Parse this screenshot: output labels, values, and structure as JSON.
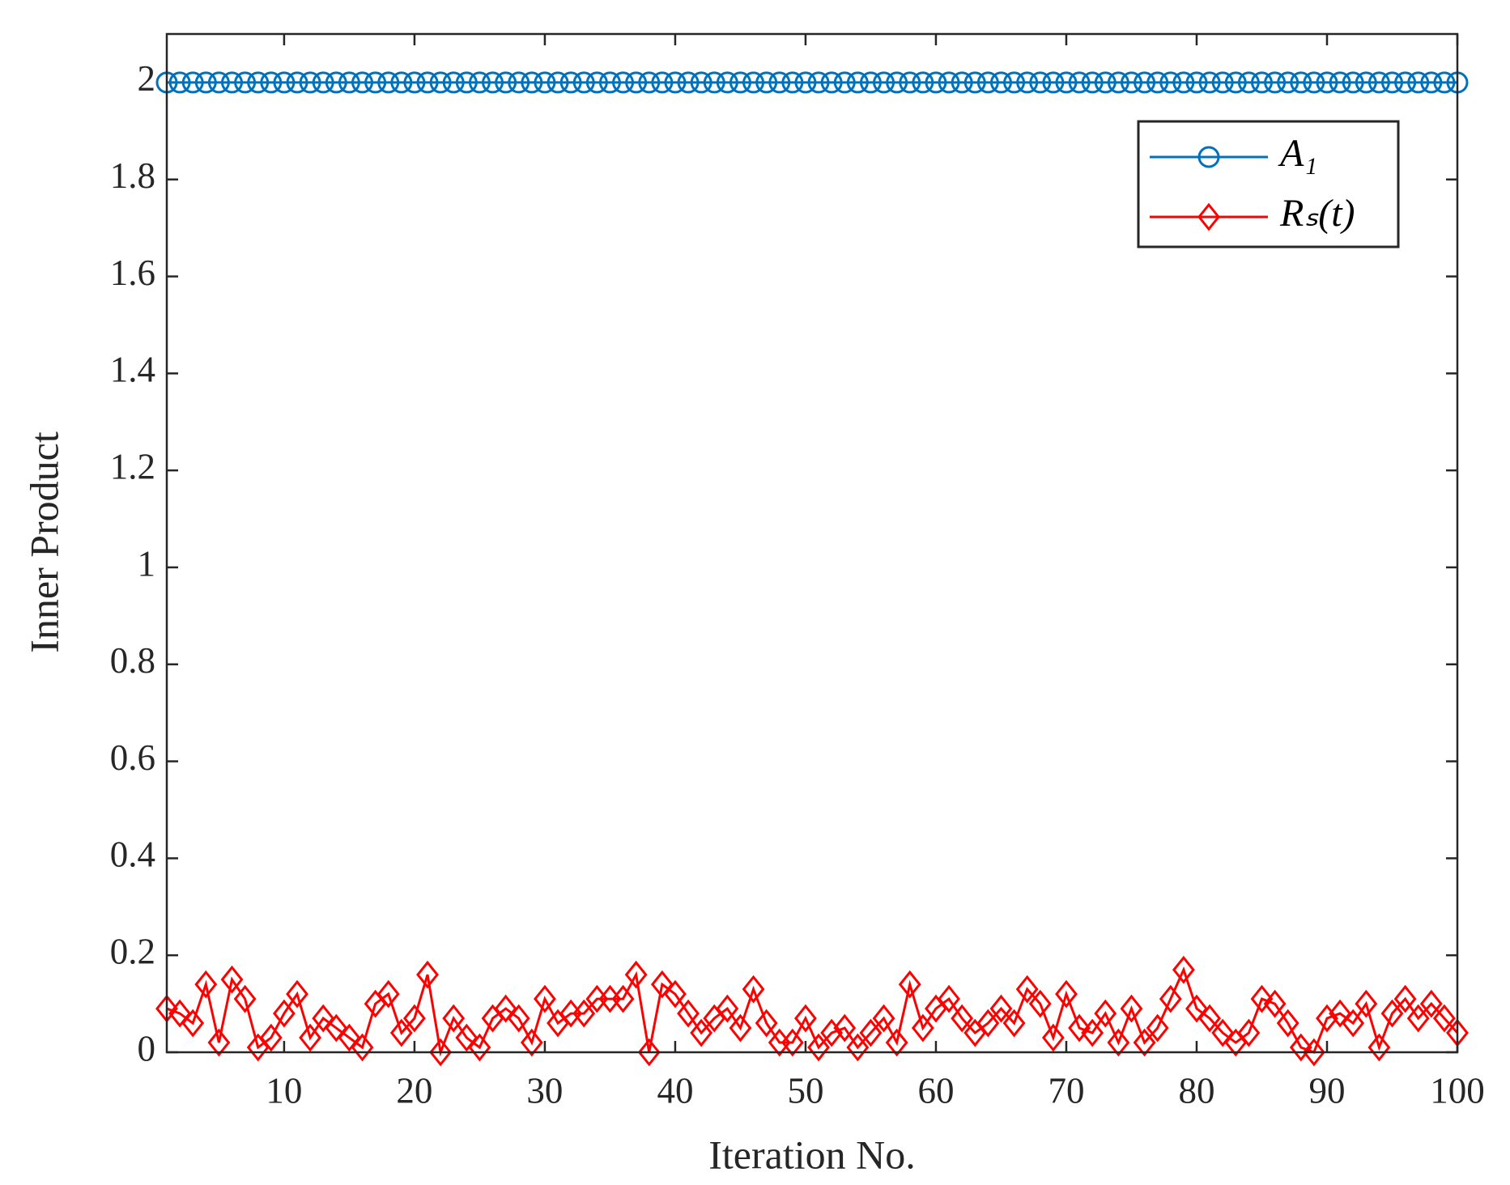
{
  "chart_data": {
    "type": "line",
    "xlabel": "Iteration No.",
    "ylabel": "Inner Product",
    "x": [
      1,
      2,
      3,
      4,
      5,
      6,
      7,
      8,
      9,
      10,
      11,
      12,
      13,
      14,
      15,
      16,
      17,
      18,
      19,
      20,
      21,
      22,
      23,
      24,
      25,
      26,
      27,
      28,
      29,
      30,
      31,
      32,
      33,
      34,
      35,
      36,
      37,
      38,
      39,
      40,
      41,
      42,
      43,
      44,
      45,
      46,
      47,
      48,
      49,
      50,
      51,
      52,
      53,
      54,
      55,
      56,
      57,
      58,
      59,
      60,
      61,
      62,
      63,
      64,
      65,
      66,
      67,
      68,
      69,
      70,
      71,
      72,
      73,
      74,
      75,
      76,
      77,
      78,
      79,
      80,
      81,
      82,
      83,
      84,
      85,
      86,
      87,
      88,
      89,
      90,
      91,
      92,
      93,
      94,
      95,
      96,
      97,
      98,
      99,
      100
    ],
    "series": [
      {
        "name": "A₁",
        "color": "#0072bd",
        "marker": "circle",
        "values": [
          2,
          2,
          2,
          2,
          2,
          2,
          2,
          2,
          2,
          2,
          2,
          2,
          2,
          2,
          2,
          2,
          2,
          2,
          2,
          2,
          2,
          2,
          2,
          2,
          2,
          2,
          2,
          2,
          2,
          2,
          2,
          2,
          2,
          2,
          2,
          2,
          2,
          2,
          2,
          2,
          2,
          2,
          2,
          2,
          2,
          2,
          2,
          2,
          2,
          2,
          2,
          2,
          2,
          2,
          2,
          2,
          2,
          2,
          2,
          2,
          2,
          2,
          2,
          2,
          2,
          2,
          2,
          2,
          2,
          2,
          2,
          2,
          2,
          2,
          2,
          2,
          2,
          2,
          2,
          2,
          2,
          2,
          2,
          2,
          2,
          2,
          2,
          2,
          2,
          2,
          2,
          2,
          2,
          2,
          2,
          2,
          2,
          2,
          2,
          2
        ]
      },
      {
        "name": "Rₛ(t)",
        "color": "#ff0000",
        "marker": "diamond",
        "values": [
          0.09,
          0.08,
          0.06,
          0.14,
          0.02,
          0.15,
          0.11,
          0.01,
          0.03,
          0.08,
          0.12,
          0.03,
          0.07,
          0.05,
          0.03,
          0.01,
          0.1,
          0.12,
          0.04,
          0.07,
          0.16,
          0.0,
          0.07,
          0.03,
          0.01,
          0.07,
          0.09,
          0.07,
          0.02,
          0.11,
          0.06,
          0.08,
          0.08,
          0.11,
          0.11,
          0.11,
          0.16,
          0.0,
          0.14,
          0.12,
          0.08,
          0.04,
          0.07,
          0.09,
          0.05,
          0.13,
          0.06,
          0.02,
          0.02,
          0.07,
          0.01,
          0.04,
          0.05,
          0.01,
          0.04,
          0.07,
          0.02,
          0.14,
          0.05,
          0.09,
          0.11,
          0.07,
          0.04,
          0.06,
          0.09,
          0.06,
          0.13,
          0.1,
          0.03,
          0.12,
          0.05,
          0.04,
          0.08,
          0.02,
          0.09,
          0.02,
          0.05,
          0.11,
          0.17,
          0.09,
          0.07,
          0.04,
          0.02,
          0.04,
          0.11,
          0.1,
          0.06,
          0.01,
          0.0,
          0.07,
          0.08,
          0.06,
          0.1,
          0.01,
          0.08,
          0.11,
          0.07,
          0.1,
          0.07,
          0.04
        ]
      }
    ],
    "xlim": [
      1,
      100
    ],
    "xticks": [
      10,
      20,
      30,
      40,
      50,
      60,
      70,
      80,
      90,
      100
    ],
    "ylim": [
      0,
      2.1
    ],
    "yticks": [
      0,
      0.2,
      0.4,
      0.6,
      0.8,
      1,
      1.2,
      1.4,
      1.6,
      1.8,
      2
    ],
    "grid": false,
    "legend": "northeast"
  }
}
